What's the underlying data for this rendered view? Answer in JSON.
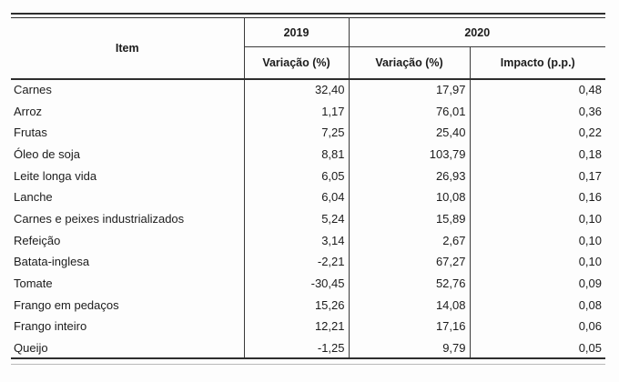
{
  "page": {
    "background": "#fdfdfd",
    "line_color": "#2e2e2e",
    "text_color": "#1c1c1c"
  },
  "chart_data": {
    "type": "table",
    "header": {
      "item": "Item",
      "year_2019": "2019",
      "year_2020": "2020",
      "sub_2019_variacao": "Variação (%)",
      "sub_2020_variacao": "Variação (%)",
      "sub_2020_impacto": "Impacto (p.p.)"
    },
    "rows": [
      {
        "item": "Carnes",
        "variacao_2019": "32,40",
        "variacao_2020": "17,97",
        "impacto_2020": "0,48"
      },
      {
        "item": "Arroz",
        "variacao_2019": "1,17",
        "variacao_2020": "76,01",
        "impacto_2020": "0,36"
      },
      {
        "item": "Frutas",
        "variacao_2019": "7,25",
        "variacao_2020": "25,40",
        "impacto_2020": "0,22"
      },
      {
        "item": "Óleo de soja",
        "variacao_2019": "8,81",
        "variacao_2020": "103,79",
        "impacto_2020": "0,18"
      },
      {
        "item": "Leite longa vida",
        "variacao_2019": "6,05",
        "variacao_2020": "26,93",
        "impacto_2020": "0,17"
      },
      {
        "item": "Lanche",
        "variacao_2019": "6,04",
        "variacao_2020": "10,08",
        "impacto_2020": "0,16"
      },
      {
        "item": "Carnes e peixes industrializados",
        "variacao_2019": "5,24",
        "variacao_2020": "15,89",
        "impacto_2020": "0,10"
      },
      {
        "item": "Refeição",
        "variacao_2019": "3,14",
        "variacao_2020": "2,67",
        "impacto_2020": "0,10"
      },
      {
        "item": "Batata-inglesa",
        "variacao_2019": "-2,21",
        "variacao_2020": "67,27",
        "impacto_2020": "0,10"
      },
      {
        "item": "Tomate",
        "variacao_2019": "-30,45",
        "variacao_2020": "52,76",
        "impacto_2020": "0,09"
      },
      {
        "item": "Frango em pedaços",
        "variacao_2019": "15,26",
        "variacao_2020": "14,08",
        "impacto_2020": "0,08"
      },
      {
        "item": "Frango inteiro",
        "variacao_2019": "12,21",
        "variacao_2020": "17,16",
        "impacto_2020": "0,06"
      },
      {
        "item": "Queijo",
        "variacao_2019": "-1,25",
        "variacao_2020": "9,79",
        "impacto_2020": "0,05"
      }
    ],
    "numeric": {
      "variacao_2019": [
        32.4,
        1.17,
        7.25,
        8.81,
        6.05,
        6.04,
        5.24,
        3.14,
        -2.21,
        -30.45,
        15.26,
        12.21,
        -1.25
      ],
      "variacao_2020": [
        17.97,
        76.01,
        25.4,
        103.79,
        26.93,
        10.08,
        15.89,
        2.67,
        67.27,
        52.76,
        14.08,
        17.16,
        9.79
      ],
      "impacto_2020": [
        0.48,
        0.36,
        0.22,
        0.18,
        0.17,
        0.16,
        0.1,
        0.1,
        0.1,
        0.09,
        0.08,
        0.06,
        0.05
      ]
    }
  }
}
